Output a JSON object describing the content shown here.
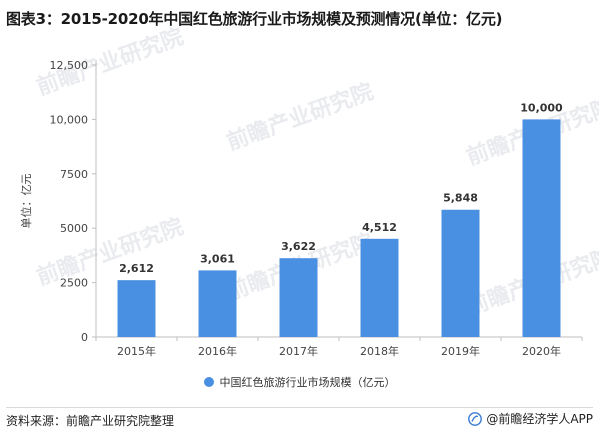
{
  "title": "图表3：2015-2020年中国红色旅游行业市场规模及预测情况(单位：亿元)",
  "source": "资料来源：前瞻产业研究院整理",
  "brand": "@前瞻经济学人APP",
  "watermark_text": "前瞻产业研究院",
  "colors": {
    "bar": "#4a90e2",
    "axis": "#bfbfbf",
    "label": "#444444"
  },
  "chart_data": {
    "type": "bar",
    "title": "图表3：2015-2020年中国红色旅游行业市场规模及预测情况(单位：亿元)",
    "categories": [
      "2015年",
      "2016年",
      "2017年",
      "2018年",
      "2019年",
      "2020年"
    ],
    "series": [
      {
        "name": "中国红色旅游行业市场规模（亿元）",
        "values": [
          2612,
          3061,
          3622,
          4512,
          5848,
          10000
        ]
      }
    ],
    "value_labels": [
      "2,612",
      "3,061",
      "3,622",
      "4,512",
      "5,848",
      "10,000"
    ],
    "ylabel": "单位：亿元",
    "xlabel": "",
    "ylim": [
      0,
      12500
    ],
    "yticks": [
      0,
      2500,
      5000,
      7500,
      10000,
      12500
    ],
    "ytick_labels": [
      "0",
      "2500",
      "5000",
      "7500",
      "10,000",
      "12,500"
    ],
    "grid": false,
    "legend_position": "bottom"
  }
}
